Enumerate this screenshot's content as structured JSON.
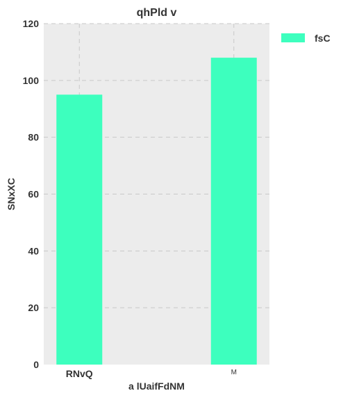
{
  "chart_data": {
    "type": "bar",
    "title": "qhPld v",
    "xlabel": "a lUaifFdNM",
    "ylabel": "SNxXC",
    "categories": [
      "RNvQ",
      "M"
    ],
    "series": [
      {
        "name": "fsC",
        "values": [
          95,
          108
        ],
        "color": "#3dffbe"
      }
    ],
    "ylim": [
      0,
      120
    ],
    "yticks": [
      0,
      20,
      40,
      60,
      80,
      100,
      120
    ],
    "grid": true,
    "legend_position": "top-right",
    "background": "#ececec"
  }
}
